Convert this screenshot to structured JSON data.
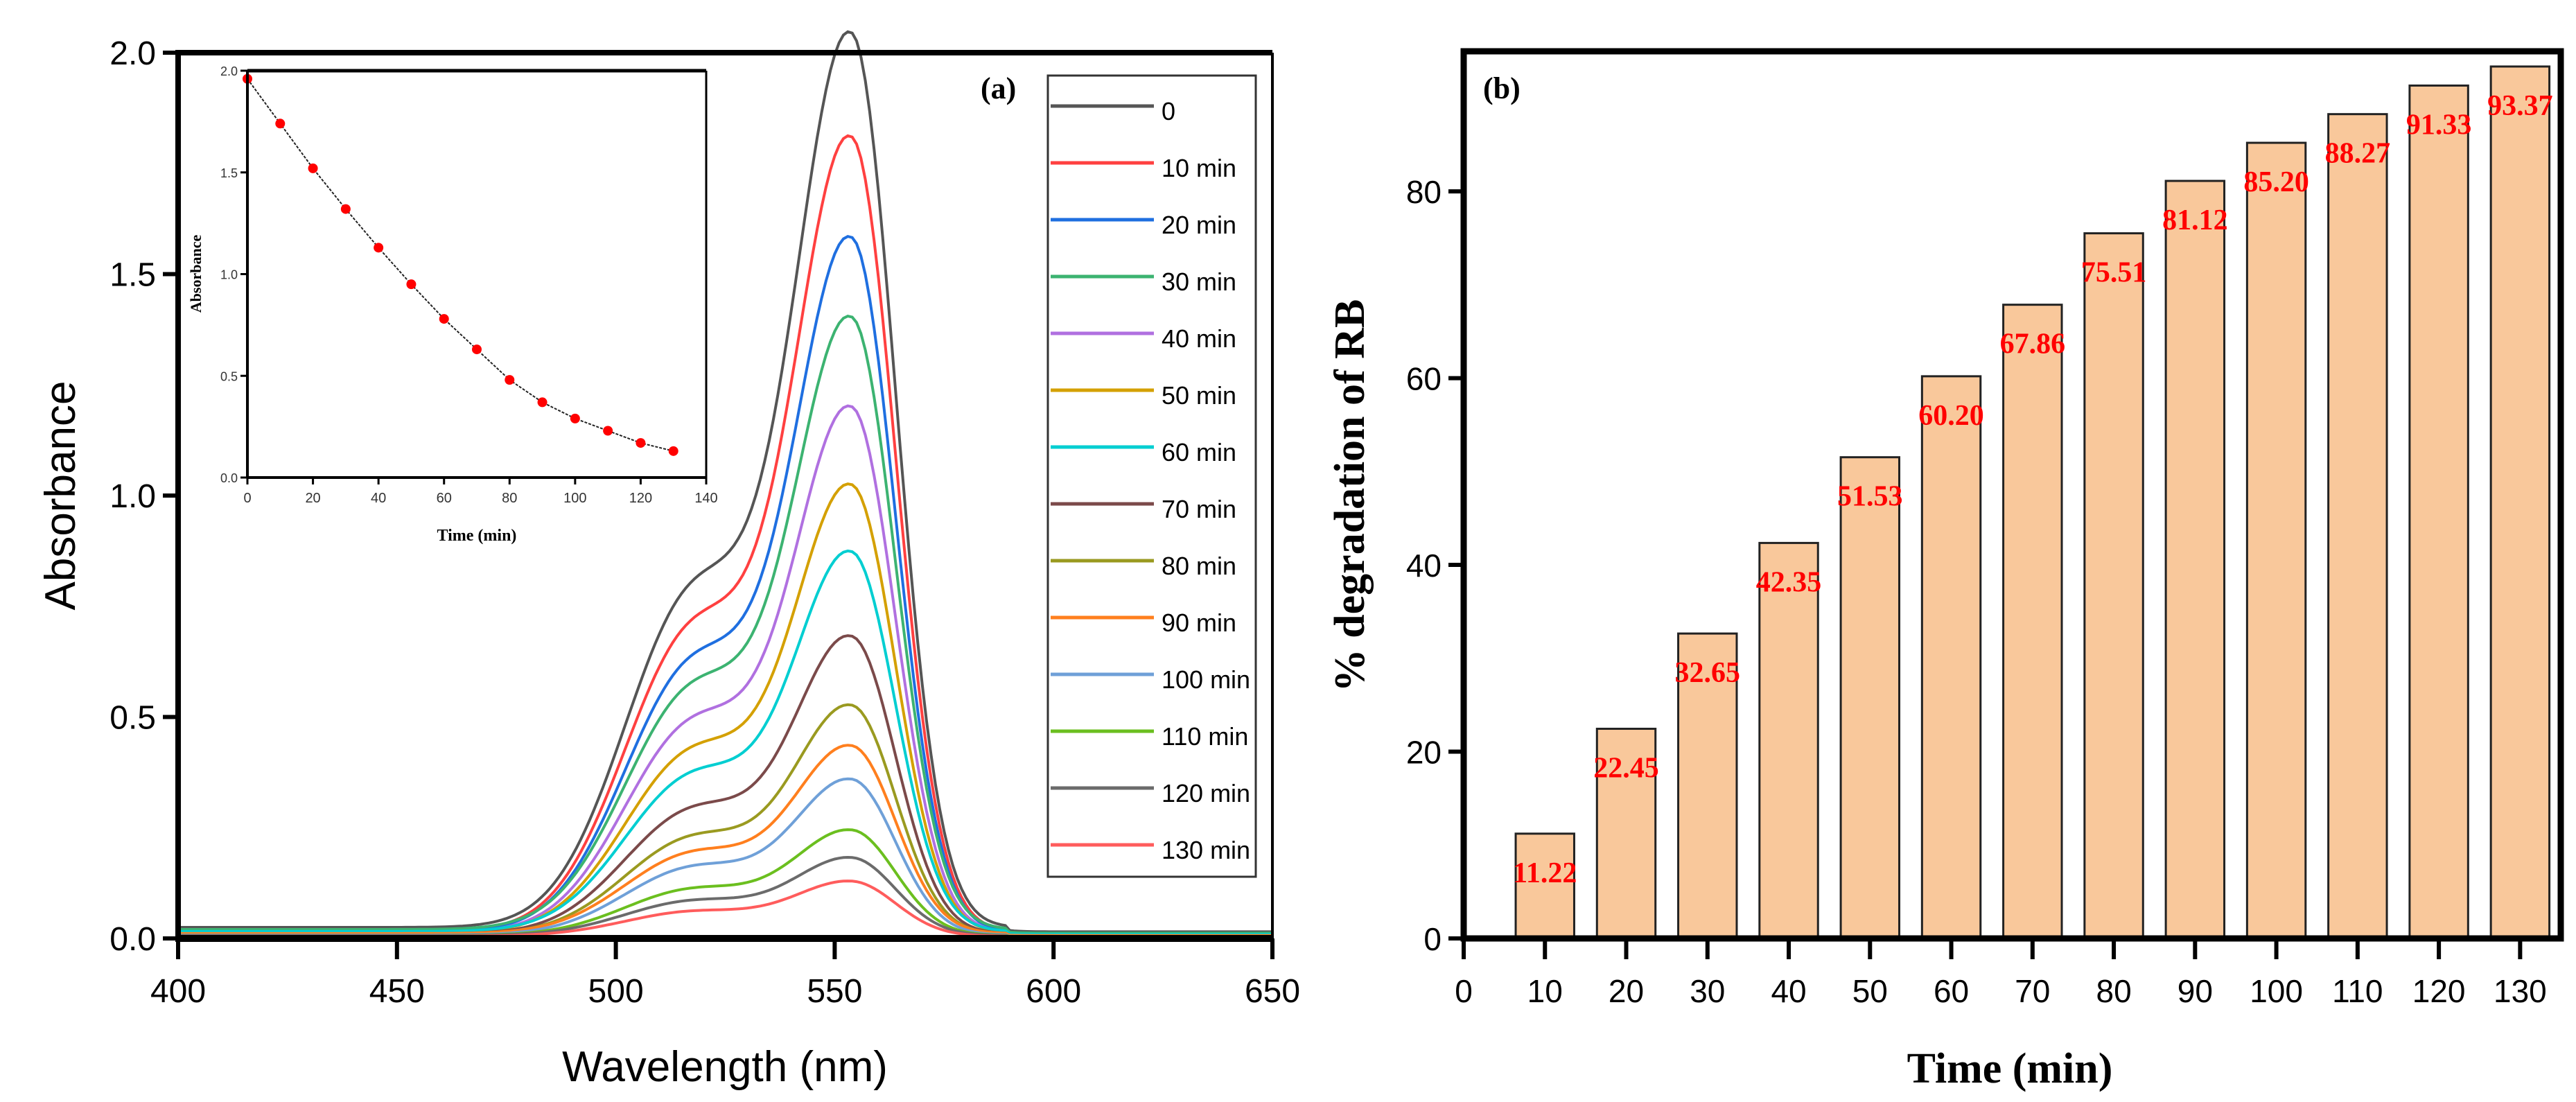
{
  "chart_data": [
    {
      "panel": "(a)",
      "type": "line",
      "xlabel": "Wavelength (nm)",
      "ylabel": "Absorbance",
      "xlim": [
        400,
        650
      ],
      "ylim": [
        0,
        2.0
      ],
      "xticks": [
        "400",
        "450",
        "500",
        "550",
        "600",
        "650"
      ],
      "yticks": [
        "0.0",
        "0.5",
        "1.0",
        "1.5",
        "2.0"
      ],
      "peak_wavelength_nm": 554,
      "legend_placement": "top-right",
      "series": [
        {
          "name": "0",
          "peak": 1.96,
          "color": "#555555"
        },
        {
          "name": "10 min",
          "peak": 1.74,
          "color": "#FF4040"
        },
        {
          "name": "20 min",
          "peak": 1.52,
          "color": "#1F6FE0"
        },
        {
          "name": "30 min",
          "peak": 1.34,
          "color": "#3CB371"
        },
        {
          "name": "40 min",
          "peak": 1.15,
          "color": "#B070E0"
        },
        {
          "name": "50 min",
          "peak": 0.98,
          "color": "#D4A000"
        },
        {
          "name": "60 min",
          "peak": 0.83,
          "color": "#00CED1"
        },
        {
          "name": "70 min",
          "peak": 0.65,
          "color": "#7B4A4A"
        },
        {
          "name": "80 min",
          "peak": 0.5,
          "color": "#9A9A20"
        },
        {
          "name": "90 min",
          "peak": 0.41,
          "color": "#FF7F1E"
        },
        {
          "name": "100 min",
          "peak": 0.34,
          "color": "#6FA0D8"
        },
        {
          "name": "110 min",
          "peak": 0.23,
          "color": "#6BBF1F"
        },
        {
          "name": "120 min",
          "peak": 0.17,
          "color": "#6B6B6B"
        },
        {
          "name": "130 min",
          "peak": 0.12,
          "color": "#FF5C5C"
        }
      ]
    },
    {
      "panel": "(a) inset",
      "type": "scatter",
      "xlabel": "Time (min)",
      "ylabel": "Absorbance",
      "xlim": [
        0,
        140
      ],
      "ylim": [
        0,
        2.0
      ],
      "xticks": [
        "0",
        "20",
        "40",
        "60",
        "80",
        "100",
        "120",
        "140"
      ],
      "yticks": [
        "0.0",
        "0.5",
        "1.0",
        "1.5",
        "2.0"
      ],
      "x": [
        0,
        10,
        20,
        30,
        40,
        50,
        60,
        70,
        80,
        90,
        100,
        110,
        120,
        130
      ],
      "y": [
        1.96,
        1.74,
        1.52,
        1.32,
        1.13,
        0.95,
        0.78,
        0.63,
        0.48,
        0.37,
        0.29,
        0.23,
        0.17,
        0.13
      ],
      "marker_color": "#FF0000"
    },
    {
      "panel": "(b)",
      "type": "bar",
      "xlabel": "Time (min)",
      "ylabel": "% degradation of RB",
      "xlim": [
        0,
        135
      ],
      "ylim": [
        0,
        95
      ],
      "xticks": [
        "0",
        "10",
        "20",
        "30",
        "40",
        "50",
        "60",
        "70",
        "80",
        "90",
        "100",
        "110",
        "120",
        "130"
      ],
      "yticks": [
        "0",
        "20",
        "40",
        "60",
        "80"
      ],
      "categories": [
        10,
        20,
        30,
        40,
        50,
        60,
        70,
        80,
        90,
        100,
        110,
        120,
        130
      ],
      "values": [
        11.22,
        22.45,
        32.65,
        42.35,
        51.53,
        60.2,
        67.86,
        75.51,
        81.12,
        85.2,
        88.27,
        91.33,
        93.37
      ],
      "labels": [
        "11.22",
        "22.45",
        "32.65",
        "42.35",
        "51.53",
        "60.20",
        "67.86",
        "75.51",
        "81.12",
        "85.20",
        "88.27",
        "91.33",
        "93.37"
      ],
      "bar_color": "#F9C89B",
      "label_color": "#FF0000"
    }
  ]
}
